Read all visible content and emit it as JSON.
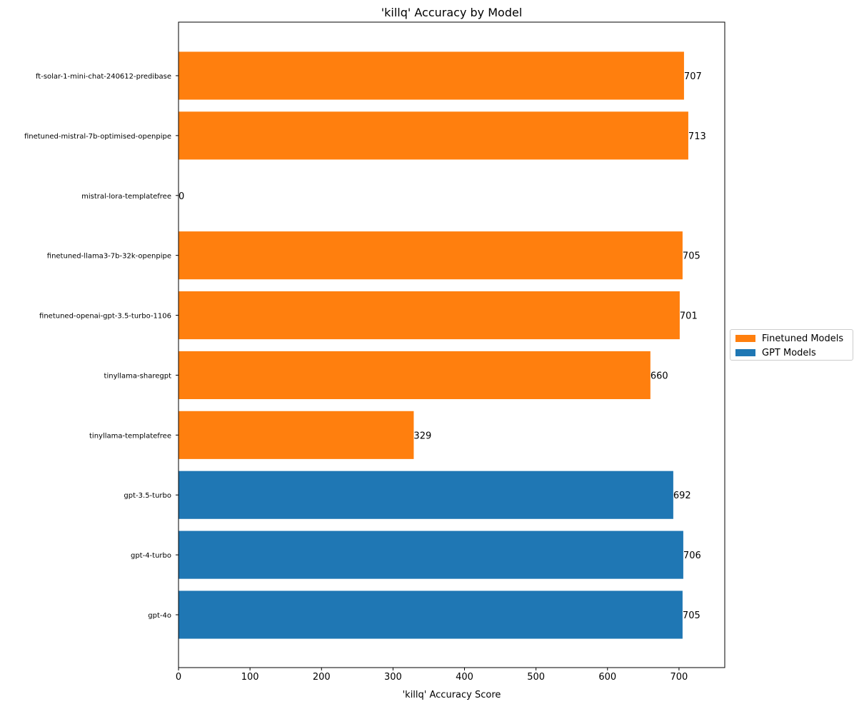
{
  "chart_data": {
    "type": "bar",
    "orientation": "horizontal",
    "title": "'killq' Accuracy by Model",
    "xlabel": "'killq' Accuracy Score",
    "ylabel": "",
    "xlim": [
      0,
      764
    ],
    "xticks": [
      0,
      100,
      200,
      300,
      400,
      500,
      600,
      700
    ],
    "grid": false,
    "legend_position": "outside-right",
    "categories": [
      "gpt-4o",
      "gpt-4-turbo",
      "gpt-3.5-turbo",
      "tinyllama-templatefree",
      "tinyllama-sharegpt",
      "finetuned-openai-gpt-3.5-turbo-1106",
      "finetuned-llama3-7b-32k-openpipe",
      "mistral-lora-templatefree",
      "finetuned-mistral-7b-optimised-openpipe",
      "ft-solar-1-mini-chat-240612-predibase"
    ],
    "values": [
      705,
      706,
      692,
      329,
      660,
      701,
      705,
      0,
      713,
      707
    ],
    "groups": [
      "GPT Models",
      "GPT Models",
      "GPT Models",
      "Finetuned Models",
      "Finetuned Models",
      "Finetuned Models",
      "Finetuned Models",
      "Finetuned Models",
      "Finetuned Models",
      "Finetuned Models"
    ],
    "series": [
      {
        "name": "Finetuned Models",
        "color": "#ff7f0e"
      },
      {
        "name": "GPT Models",
        "color": "#1f77b4"
      }
    ]
  }
}
